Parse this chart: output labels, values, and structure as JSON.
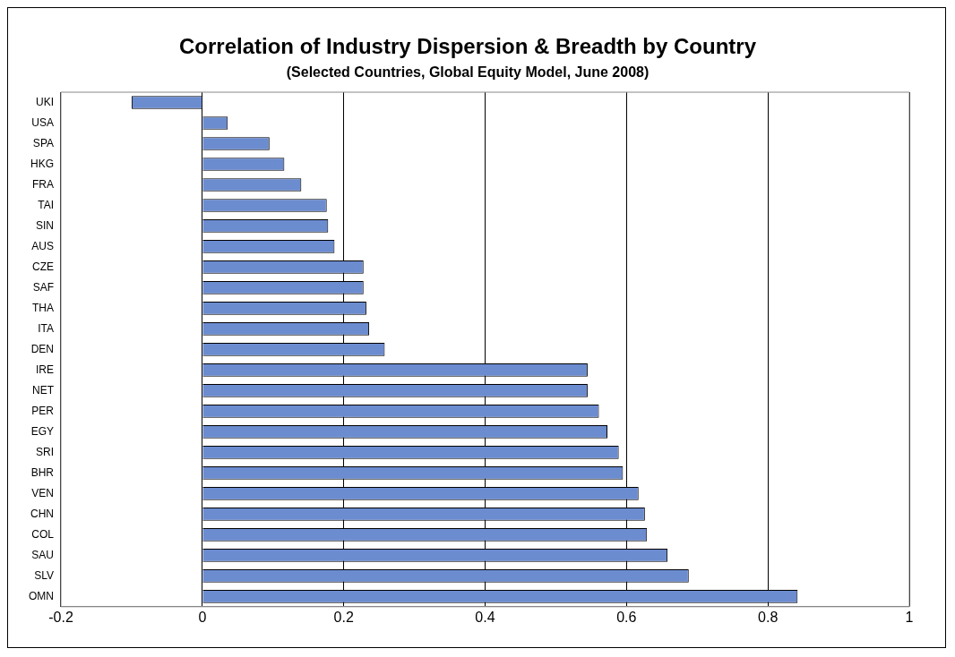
{
  "chart_data": {
    "type": "bar",
    "orientation": "horizontal",
    "title": "Correlation of Industry Dispersion & Breadth by Country",
    "subtitle": "(Selected Countries, Global Equity Model, June 2008)",
    "categories": [
      "UKI",
      "USA",
      "SPA",
      "HKG",
      "FRA",
      "TAI",
      "SIN",
      "AUS",
      "CZE",
      "SAF",
      "THA",
      "ITA",
      "DEN",
      "IRE",
      "NET",
      "PER",
      "EGY",
      "SRI",
      "BHR",
      "VEN",
      "CHN",
      "COL",
      "SAU",
      "SLV",
      "OMN"
    ],
    "values": [
      -0.1,
      0.036,
      0.095,
      0.116,
      0.14,
      0.176,
      0.178,
      0.187,
      0.228,
      0.228,
      0.232,
      0.236,
      0.258,
      0.545,
      0.545,
      0.561,
      0.573,
      0.589,
      0.595,
      0.617,
      0.626,
      0.629,
      0.658,
      0.688,
      0.842
    ],
    "color": "#6c8cd0",
    "xlim": [
      -0.2,
      1
    ],
    "xticks": [
      -0.2,
      0,
      0.2,
      0.4,
      0.6,
      0.8,
      1
    ],
    "grid": "x",
    "legend": false
  }
}
